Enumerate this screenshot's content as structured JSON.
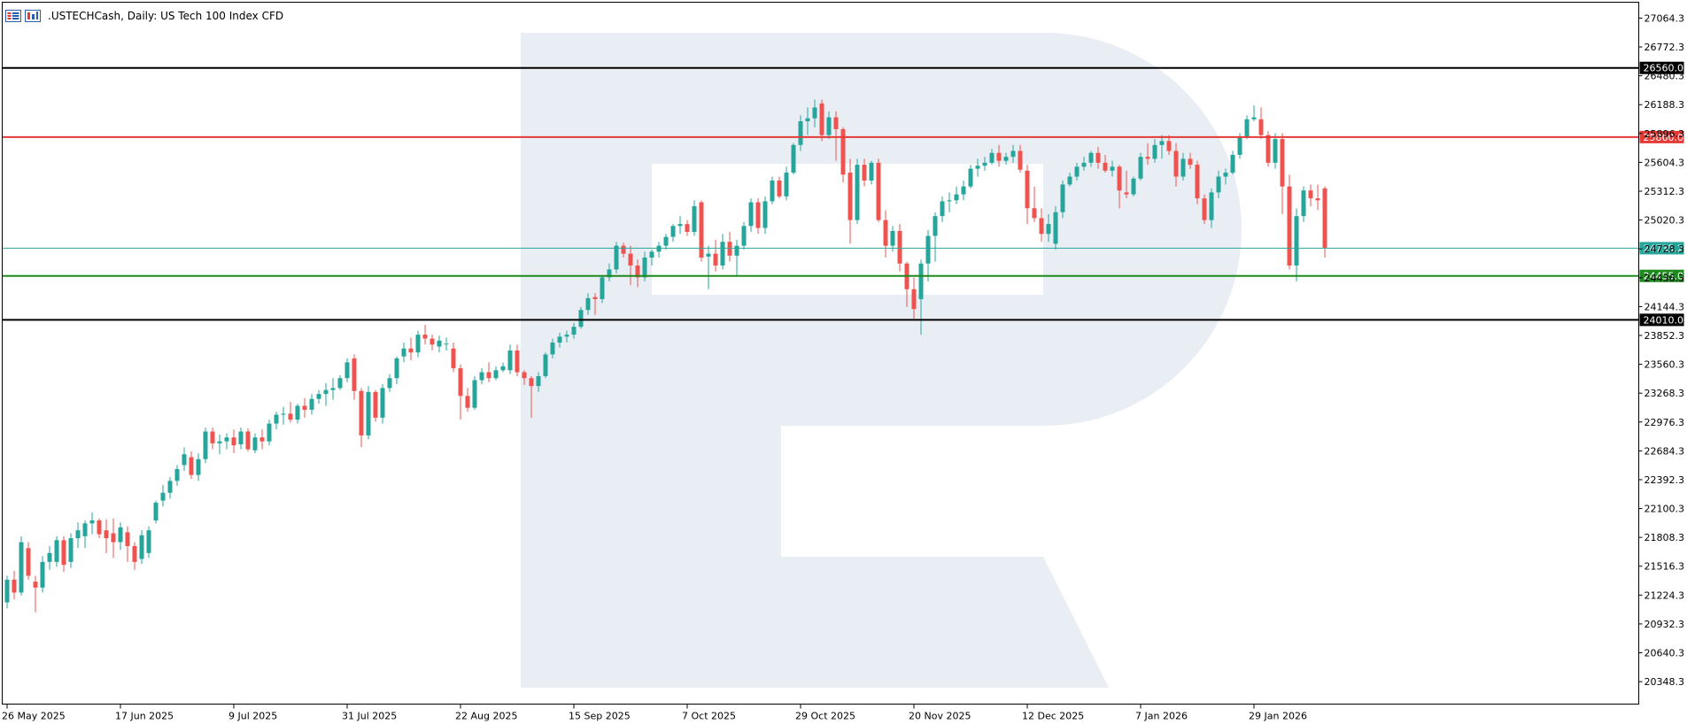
{
  "header": {
    "icons": [
      "list-icon",
      "chart-window-icon"
    ],
    "symbol": ".USTECHCash, Daily:  US Tech 100 Index CFD"
  },
  "colors": {
    "bull": "#26a69a",
    "bear": "#ef5350",
    "frame": "#000000",
    "watermark": "#e9edf4",
    "price_line": "#26a69a"
  },
  "watermark_name": "logo-watermark",
  "chart_data": {
    "type": "candlestick",
    "title": ".USTECHCash, Daily:  US Tech 100 Index CFD",
    "ylim": [
      20121,
      27225
    ],
    "grid": false,
    "y_ticks": [
      27064.3,
      26772.3,
      26480.3,
      26188.3,
      25896.3,
      25604.3,
      25312.3,
      25020.3,
      24728.3,
      24436.3,
      24144.3,
      23852.3,
      23560.3,
      23268.3,
      22976.3,
      22684.3,
      22392.3,
      22100.3,
      21808.3,
      21516.3,
      21224.3,
      20932.3,
      20640.3,
      20348.3
    ],
    "x_labels": [
      "26 May 2025",
      "17 Jun 2025",
      "9 Jul 2025",
      "31 Jul 2025",
      "22 Aug 2025",
      "15 Sep 2025",
      "7 Oct 2025",
      "29 Oct 2025",
      "20 Nov 2025",
      "12 Dec 2025",
      "7 Jan 2026",
      "29 Jan 2026"
    ],
    "x_label_indices": [
      0,
      16,
      32,
      48,
      64,
      80,
      96,
      112,
      128,
      144,
      160,
      176
    ],
    "levels": [
      {
        "value": 26560.0,
        "label": "26560.0",
        "color": "#000000",
        "kind": "support-resistance"
      },
      {
        "value": 25860.0,
        "label": "25860.0",
        "color": "#e53935",
        "kind": "resistance"
      },
      {
        "value": 24735.2,
        "label": "24735.2",
        "color": "#26a69a",
        "kind": "current-price"
      },
      {
        "value": 24455.0,
        "label": "24455.0",
        "color": "#1e8a1e",
        "kind": "support"
      },
      {
        "value": 24010.0,
        "label": "24010.0",
        "color": "#000000",
        "kind": "support"
      }
    ],
    "ohlc": [
      [
        21150,
        21420,
        21090,
        21380
      ],
      [
        21380,
        21470,
        21180,
        21250
      ],
      [
        21250,
        21820,
        21220,
        21760
      ],
      [
        21700,
        21760,
        21380,
        21420
      ],
      [
        21360,
        21420,
        21050,
        21300
      ],
      [
        21300,
        21620,
        21250,
        21560
      ],
      [
        21560,
        21720,
        21480,
        21650
      ],
      [
        21560,
        21820,
        21510,
        21780
      ],
      [
        21780,
        21820,
        21460,
        21530
      ],
      [
        21560,
        21850,
        21500,
        21800
      ],
      [
        21800,
        21960,
        21700,
        21880
      ],
      [
        21820,
        21980,
        21700,
        21950
      ],
      [
        21950,
        22060,
        21840,
        21980
      ],
      [
        21980,
        22000,
        21800,
        21840
      ],
      [
        21880,
        21990,
        21650,
        21800
      ],
      [
        21850,
        22000,
        21600,
        21760
      ],
      [
        21760,
        21960,
        21680,
        21910
      ],
      [
        21860,
        21920,
        21560,
        21720
      ],
      [
        21720,
        21760,
        21480,
        21560
      ],
      [
        21590,
        21880,
        21540,
        21830
      ],
      [
        21650,
        21920,
        21600,
        21880
      ],
      [
        21980,
        22180,
        21950,
        22160
      ],
      [
        22180,
        22340,
        22120,
        22260
      ],
      [
        22260,
        22420,
        22200,
        22380
      ],
      [
        22380,
        22540,
        22330,
        22500
      ],
      [
        22540,
        22720,
        22480,
        22650
      ],
      [
        22620,
        22680,
        22400,
        22440
      ],
      [
        22440,
        22660,
        22380,
        22600
      ],
      [
        22600,
        22920,
        22560,
        22880
      ],
      [
        22880,
        22920,
        22700,
        22760
      ],
      [
        22760,
        22850,
        22650,
        22780
      ],
      [
        22780,
        22860,
        22700,
        22820
      ],
      [
        22820,
        22900,
        22660,
        22740
      ],
      [
        22750,
        22920,
        22700,
        22880
      ],
      [
        22880,
        22910,
        22680,
        22700
      ],
      [
        22690,
        22860,
        22660,
        22820
      ],
      [
        22820,
        22900,
        22700,
        22780
      ],
      [
        22780,
        23000,
        22740,
        22960
      ],
      [
        22960,
        23080,
        22900,
        23050
      ],
      [
        23050,
        23130,
        22950,
        23060
      ],
      [
        23060,
        23180,
        22970,
        23000
      ],
      [
        23000,
        23160,
        22960,
        23140
      ],
      [
        23140,
        23220,
        23020,
        23100
      ],
      [
        23100,
        23260,
        23050,
        23210
      ],
      [
        23210,
        23300,
        23160,
        23260
      ],
      [
        23260,
        23370,
        23140,
        23300
      ],
      [
        23300,
        23420,
        23200,
        23320
      ],
      [
        23320,
        23450,
        23300,
        23420
      ],
      [
        23420,
        23620,
        23380,
        23580
      ],
      [
        23620,
        23660,
        23200,
        23290
      ],
      [
        23290,
        23320,
        22720,
        22840
      ],
      [
        22840,
        23340,
        22800,
        23280
      ],
      [
        23280,
        23300,
        22980,
        23020
      ],
      [
        23020,
        23360,
        22960,
        23320
      ],
      [
        23320,
        23460,
        23280,
        23420
      ],
      [
        23420,
        23640,
        23360,
        23620
      ],
      [
        23640,
        23780,
        23580,
        23720
      ],
      [
        23720,
        23830,
        23600,
        23680
      ],
      [
        23680,
        23900,
        23630,
        23860
      ],
      [
        23860,
        23960,
        23760,
        23820
      ],
      [
        23820,
        23860,
        23700,
        23760
      ],
      [
        23740,
        23850,
        23680,
        23800
      ],
      [
        23770,
        23830,
        23700,
        23770
      ],
      [
        23720,
        23780,
        23480,
        23520
      ],
      [
        23520,
        23560,
        23000,
        23240
      ],
      [
        23240,
        23320,
        23080,
        23120
      ],
      [
        23120,
        23440,
        23100,
        23400
      ],
      [
        23400,
        23520,
        23360,
        23480
      ],
      [
        23480,
        23580,
        23380,
        23420
      ],
      [
        23420,
        23540,
        23400,
        23500
      ],
      [
        23500,
        23580,
        23480,
        23540
      ],
      [
        23500,
        23760,
        23460,
        23700
      ],
      [
        23700,
        23760,
        23440,
        23480
      ],
      [
        23480,
        23500,
        23350,
        23420
      ],
      [
        23420,
        23440,
        23020,
        23340
      ],
      [
        23340,
        23480,
        23280,
        23440
      ],
      [
        23440,
        23680,
        23420,
        23660
      ],
      [
        23660,
        23820,
        23620,
        23780
      ],
      [
        23780,
        23880,
        23730,
        23840
      ],
      [
        23840,
        23900,
        23780,
        23860
      ],
      [
        23860,
        23980,
        23820,
        23940
      ],
      [
        23940,
        24140,
        23920,
        24110
      ],
      [
        24110,
        24280,
        24060,
        24230
      ],
      [
        24240,
        24280,
        24060,
        24220
      ],
      [
        24220,
        24460,
        24180,
        24440
      ],
      [
        24440,
        24580,
        24400,
        24520
      ],
      [
        24520,
        24800,
        24480,
        24760
      ],
      [
        24760,
        24790,
        24640,
        24680
      ],
      [
        24680,
        24760,
        24360,
        24560
      ],
      [
        24560,
        24620,
        24340,
        24440
      ],
      [
        24440,
        24700,
        24400,
        24640
      ],
      [
        24640,
        24720,
        24560,
        24700
      ],
      [
        24700,
        24800,
        24640,
        24760
      ],
      [
        24760,
        24880,
        24720,
        24850
      ],
      [
        24850,
        24980,
        24800,
        24960
      ],
      [
        24960,
        25060,
        24880,
        24980
      ],
      [
        24980,
        25020,
        24860,
        24900
      ],
      [
        24900,
        25220,
        24860,
        25160
      ],
      [
        25200,
        25220,
        24600,
        24640
      ],
      [
        24650,
        24760,
        24320,
        24680
      ],
      [
        24680,
        24820,
        24500,
        24560
      ],
      [
        24560,
        24880,
        24520,
        24800
      ],
      [
        24800,
        24900,
        24600,
        24660
      ],
      [
        24660,
        24820,
        24460,
        24760
      ],
      [
        24760,
        25000,
        24720,
        24960
      ],
      [
        24960,
        25240,
        24900,
        25200
      ],
      [
        25200,
        25240,
        24880,
        24940
      ],
      [
        24940,
        25260,
        24880,
        25210
      ],
      [
        25210,
        25460,
        25180,
        25420
      ],
      [
        25420,
        25460,
        25240,
        25260
      ],
      [
        25260,
        25560,
        25220,
        25500
      ],
      [
        25500,
        25800,
        25480,
        25780
      ],
      [
        25780,
        26080,
        25720,
        26020
      ],
      [
        26020,
        26160,
        25880,
        26050
      ],
      [
        26050,
        26240,
        25960,
        26160
      ],
      [
        26200,
        26240,
        25820,
        25880
      ],
      [
        25880,
        26120,
        25840,
        26060
      ],
      [
        26060,
        26120,
        25620,
        25940
      ],
      [
        25940,
        25960,
        25400,
        25480
      ],
      [
        25500,
        25640,
        24780,
        25020
      ],
      [
        25020,
        25640,
        24980,
        25580
      ],
      [
        25580,
        25640,
        25360,
        25420
      ],
      [
        25420,
        25620,
        25380,
        25600
      ],
      [
        25600,
        25640,
        25000,
        25020
      ],
      [
        25020,
        25120,
        24640,
        24760
      ],
      [
        24760,
        24960,
        24700,
        24910
      ],
      [
        24910,
        24980,
        24500,
        24580
      ],
      [
        24580,
        24600,
        24140,
        24320
      ],
      [
        24320,
        24440,
        24020,
        24120
      ],
      [
        24220,
        24620,
        23860,
        24580
      ],
      [
        24580,
        24920,
        24400,
        24860
      ],
      [
        24860,
        25100,
        24600,
        25060
      ],
      [
        25060,
        25260,
        25000,
        25210
      ],
      [
        25210,
        25300,
        25100,
        25220
      ],
      [
        25220,
        25360,
        25180,
        25280
      ],
      [
        25280,
        25420,
        25220,
        25360
      ],
      [
        25360,
        25580,
        25340,
        25540
      ],
      [
        25540,
        25640,
        25460,
        25570
      ],
      [
        25570,
        25660,
        25520,
        25600
      ],
      [
        25600,
        25740,
        25580,
        25700
      ],
      [
        25700,
        25780,
        25560,
        25620
      ],
      [
        25620,
        25700,
        25580,
        25660
      ],
      [
        25660,
        25780,
        25600,
        25720
      ],
      [
        25720,
        25780,
        25500,
        25530
      ],
      [
        25520,
        25580,
        24980,
        25140
      ],
      [
        25140,
        25360,
        25000,
        25040
      ],
      [
        25040,
        25140,
        24800,
        24880
      ],
      [
        24880,
        25080,
        24800,
        24980
      ],
      [
        24780,
        25160,
        24720,
        25100
      ],
      [
        25100,
        25420,
        25040,
        25380
      ],
      [
        25380,
        25500,
        25360,
        25460
      ],
      [
        25460,
        25600,
        25420,
        25560
      ],
      [
        25560,
        25660,
        25520,
        25600
      ],
      [
        25600,
        25720,
        25560,
        25700
      ],
      [
        25700,
        25760,
        25540,
        25600
      ],
      [
        25600,
        25680,
        25500,
        25520
      ],
      [
        25520,
        25620,
        25460,
        25560
      ],
      [
        25560,
        25580,
        25140,
        25320
      ],
      [
        25300,
        25520,
        25240,
        25280
      ],
      [
        25280,
        25460,
        25260,
        25440
      ],
      [
        25440,
        25700,
        25420,
        25660
      ],
      [
        25660,
        25800,
        25580,
        25640
      ],
      [
        25640,
        25840,
        25600,
        25780
      ],
      [
        25780,
        25880,
        25640,
        25820
      ],
      [
        25820,
        25880,
        25680,
        25720
      ],
      [
        25720,
        25800,
        25360,
        25460
      ],
      [
        25460,
        25700,
        25420,
        25640
      ],
      [
        25640,
        25700,
        25540,
        25580
      ],
      [
        25580,
        25620,
        25180,
        25240
      ],
      [
        25240,
        25280,
        24980,
        25020
      ],
      [
        25020,
        25340,
        24940,
        25300
      ],
      [
        25300,
        25520,
        25240,
        25460
      ],
      [
        25460,
        25540,
        25380,
        25500
      ],
      [
        25500,
        25720,
        25480,
        25680
      ],
      [
        25680,
        25900,
        25640,
        25860
      ],
      [
        25860,
        26080,
        25840,
        26040
      ],
      [
        26040,
        26180,
        26020,
        26060
      ],
      [
        26040,
        26160,
        25840,
        25880
      ],
      [
        25880,
        25920,
        25560,
        25600
      ],
      [
        25600,
        25900,
        25540,
        25840
      ],
      [
        25840,
        25900,
        25080,
        25360
      ],
      [
        25360,
        25480,
        24520,
        24560
      ],
      [
        24560,
        25140,
        24400,
        25060
      ],
      [
        25060,
        25360,
        25000,
        25320
      ],
      [
        25320,
        25380,
        25160,
        25240
      ],
      [
        25240,
        25380,
        25120,
        25220
      ],
      [
        25340,
        25360,
        24640,
        24740
      ]
    ]
  }
}
